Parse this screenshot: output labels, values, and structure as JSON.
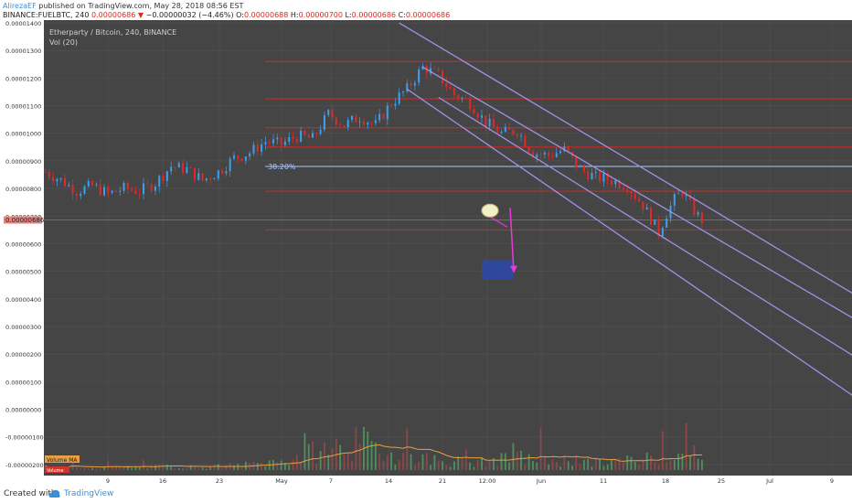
{
  "header": {
    "author": "AlirezaEF",
    "published": " published on TradingView.com, May 28, 2018 08:56 EST",
    "symbol": "BINANCE:FUELBTC, 240",
    "price": "0.00000686",
    "change_arrow": "▼",
    "change": "−0.00000032 (−4.46%)",
    "o_label": "O:",
    "o_value": "0.00000688",
    "h_label": "H:",
    "h_value": "0.00000700",
    "l_label": "L:",
    "l_value": "0.00000686",
    "c_label": "C:",
    "c_value": "0.00000686"
  },
  "legend": {
    "title": "Etherparty / Bitcoin, 240, BINANCE",
    "volume": "Vol (20)",
    "volume_ma_label": "Volume MA",
    "volume_label": "Volume"
  },
  "fib_label": "38.20%",
  "price_badge": "0.00000686",
  "footer": {
    "created_with": "Created with",
    "brand": "TradingView"
  },
  "colors": {
    "background": "#454545",
    "grid": "#525252",
    "candle_up": "#3e9ff0",
    "candle_down": "#e02a2a",
    "fib_line": "#e0261b",
    "fib_highlight": "#a9c7ff",
    "channel": "#9f92e6",
    "target_box": "#2a4ab8",
    "arrow": "#e83ad8",
    "volume_ma": "#e8a040",
    "volume_up": "#4f8f5d",
    "volume_down": "#8f4646"
  },
  "chart_data": {
    "type": "candlestick",
    "title": "Etherparty / Bitcoin, 240, BINANCE",
    "y_ticks": [
      "0.00001400",
      "0.00001300",
      "0.00001200",
      "0.00001100",
      "0.00001000",
      "0.00000900",
      "0.00000800",
      "0.00000700",
      "0.00000600",
      "0.00000500",
      "0.00000400",
      "0.00000300",
      "0.00000200",
      "0.00000100",
      "0.00000000",
      "-0.00000100",
      "-0.00000200"
    ],
    "x_ticks": [
      "9",
      "16",
      "23",
      "May",
      "7",
      "14",
      "21",
      "12:00",
      "Jun",
      "11",
      "18",
      "25",
      "Jul",
      "9"
    ],
    "ylim": [
      -2.4e-06,
      1.45e-05
    ],
    "fib_levels": [
      1.26e-05,
      1.125e-05,
      1.02e-05,
      9.5e-06,
      8.8e-06,
      7.9e-06,
      6.5e-06
    ],
    "fib_highlight_level": 8.8e-06,
    "last_price": 6.86e-06,
    "price_path": [
      [
        0,
        8.6e-06
      ],
      [
        4,
        8.3e-06
      ],
      [
        8,
        7.9e-06
      ],
      [
        12,
        8.1e-06
      ],
      [
        16,
        7.8e-06
      ],
      [
        20,
        8e-06
      ],
      [
        24,
        7.9e-06
      ],
      [
        28,
        8.2e-06
      ],
      [
        32,
        8.8e-06
      ],
      [
        36,
        8.7e-06
      ],
      [
        40,
        8.3e-06
      ],
      [
        44,
        8.6e-06
      ],
      [
        48,
        9.1e-06
      ],
      [
        52,
        9.3e-06
      ],
      [
        56,
        9.7e-06
      ],
      [
        60,
        9.6e-06
      ],
      [
        64,
        9.9e-06
      ],
      [
        68,
        9.8e-06
      ],
      [
        72,
        1.07e-05
      ],
      [
        76,
        1.03e-05
      ],
      [
        80,
        1.06e-05
      ],
      [
        84,
        1.03e-05
      ],
      [
        88,
        1.11e-05
      ],
      [
        92,
        1.16e-05
      ],
      [
        96,
        1.24e-05
      ],
      [
        100,
        1.21e-05
      ],
      [
        104,
        1.14e-05
      ],
      [
        108,
        1.11e-05
      ],
      [
        112,
        1.04e-05
      ],
      [
        116,
        1e-05
      ],
      [
        120,
        1.01e-05
      ],
      [
        124,
        9.3e-06
      ],
      [
        128,
        9.2e-06
      ],
      [
        132,
        9.4e-06
      ],
      [
        136,
        8.7e-06
      ],
      [
        140,
        8.4e-06
      ],
      [
        144,
        8.3e-06
      ],
      [
        148,
        8.1e-06
      ],
      [
        152,
        7.4e-06
      ],
      [
        156,
        6.4e-06
      ],
      [
        158,
        7.1e-06
      ],
      [
        160,
        7.6e-06
      ],
      [
        162,
        7.9e-06
      ],
      [
        164,
        7.4e-06
      ],
      [
        166,
        7e-06
      ],
      [
        167,
        6.86e-06
      ]
    ],
    "volume_path": [
      [
        0,
        1e-07
      ],
      [
        10,
        1.2e-07
      ],
      [
        20,
        1e-07
      ],
      [
        30,
        1.5e-07
      ],
      [
        40,
        1.2e-07
      ],
      [
        50,
        2e-07
      ],
      [
        60,
        3.5e-07
      ],
      [
        70,
        8e-07
      ],
      [
        80,
        1.1e-06
      ],
      [
        90,
        6e-07
      ],
      [
        100,
        4e-07
      ],
      [
        110,
        3e-07
      ],
      [
        120,
        5e-07
      ],
      [
        130,
        4e-07
      ],
      [
        140,
        3e-07
      ],
      [
        150,
        4e-07
      ],
      [
        160,
        7e-07
      ],
      [
        167,
        3e-07
      ]
    ],
    "channels": [
      {
        "x1": 96,
        "y1": 1.24e-05,
        "x2": 280,
        "y2": -2.9e-06
      },
      {
        "x1": 100,
        "y1": 1.13e-05,
        "x2": 260,
        "y2": -2.9e-06
      },
      {
        "x1": 90,
        "y1": 1.4e-05,
        "x2": 270,
        "y2": -1.3e-06
      },
      {
        "x1": 92,
        "y1": 1.16e-05,
        "x2": 240,
        "y2": -2.9e-06
      }
    ]
  }
}
